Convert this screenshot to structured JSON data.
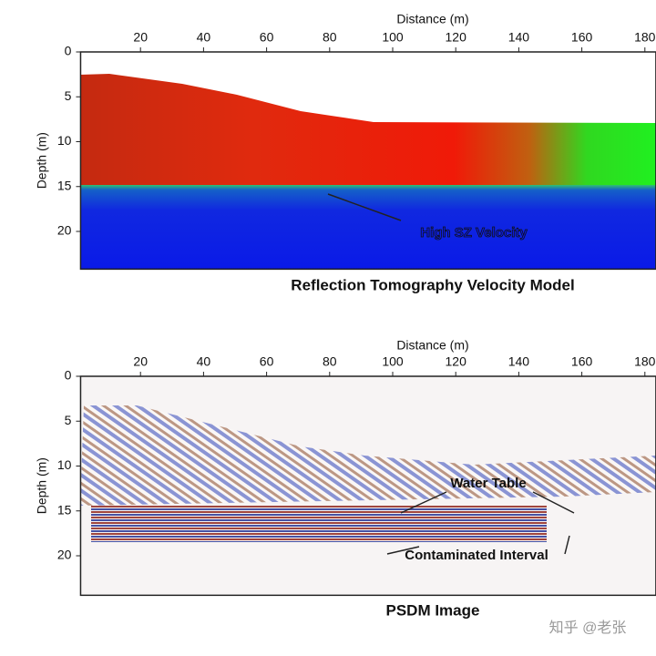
{
  "chart_data": [
    {
      "type": "image",
      "title": "Reflection Tomography Velocity Model",
      "xlabel": "Distance (m)",
      "ylabel": "Depth (m)",
      "xlim": [
        1,
        183.5
      ],
      "ylim": [
        0,
        24.2
      ],
      "xticks": [
        20,
        40,
        60,
        80,
        100,
        120,
        140,
        160,
        180
      ],
      "yticks": [
        0,
        5,
        10,
        15,
        20
      ],
      "annotations": [
        "High SZ Velocity"
      ]
    },
    {
      "type": "image",
      "title": "PSDM Image",
      "xlabel": "Distance (m)",
      "ylabel": "Depth (m)",
      "xlim": [
        1,
        183.5
      ],
      "ylim": [
        0,
        24.4
      ],
      "xticks": [
        20,
        40,
        60,
        80,
        100,
        120,
        140,
        160,
        180
      ],
      "yticks": [
        0,
        5,
        10,
        15,
        20
      ],
      "annotations": [
        "Water Table",
        "Contaminated Interval"
      ]
    }
  ],
  "watermark": "知乎 @老张"
}
